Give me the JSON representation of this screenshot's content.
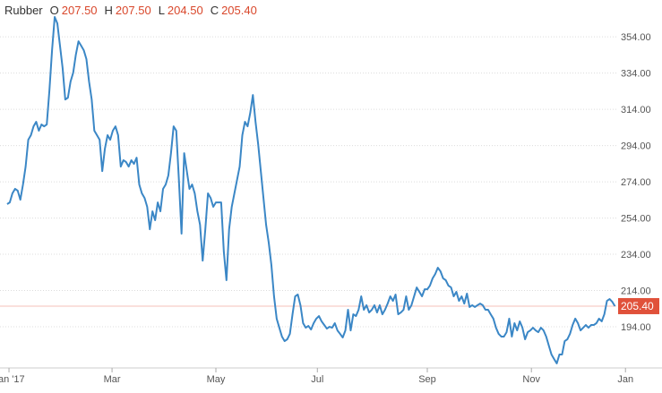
{
  "chart_data": {
    "type": "line",
    "title": "Rubber",
    "ohlc": [
      {
        "name": "O",
        "value": 207.5,
        "label": "207.50"
      },
      {
        "name": "H",
        "value": 207.5,
        "label": "207.50"
      },
      {
        "name": "L",
        "value": 204.5,
        "label": "204.50"
      },
      {
        "name": "C",
        "value": 205.4,
        "label": "205.40"
      }
    ],
    "color": "#3b87c6",
    "last_value": {
      "value": 205.4,
      "label": "205.40"
    },
    "last_color": "#e0513a",
    "values": [
      261.7,
      262.6,
      267.6,
      270.1,
      269.1,
      264.1,
      272.5,
      282.4,
      297.2,
      299.7,
      304.6,
      307.1,
      302.2,
      305.6,
      304.6,
      305.6,
      324.4,
      346.6,
      364.9,
      361.4,
      349.1,
      336.7,
      319.4,
      320.4,
      329.3,
      334.2,
      344.1,
      351.5,
      349.1,
      346.6,
      341.7,
      329.3,
      319.4,
      302.2,
      299.7,
      297.2,
      279.9,
      292.3,
      299.7,
      297.2,
      302.2,
      304.6,
      299.7,
      282.4,
      285.9,
      284.9,
      282.4,
      285.9,
      283.9,
      287.3,
      272.5,
      267.6,
      265.1,
      260.2,
      247.8,
      257.7,
      252.8,
      262.6,
      257.7,
      270.1,
      272.5,
      277.5,
      289.8,
      304.6,
      302.2,
      275,
      245.4,
      289.8,
      279.9,
      270.1,
      272.5,
      267.6,
      257.7,
      250.3,
      230.5,
      247.8,
      267.6,
      265.1,
      260.2,
      262.6,
      262.6,
      262.6,
      235.5,
      219.7,
      247.8,
      260.2,
      267.6,
      275,
      282.4,
      299.7,
      307.1,
      304.6,
      312,
      321.9,
      307.1,
      294.7,
      279.9,
      265.1,
      250.3,
      240.4,
      228.1,
      210.8,
      198.5,
      193.5,
      188.6,
      186.1,
      187.1,
      190.1,
      200.9,
      210.8,
      211.8,
      205.9,
      196,
      193.5,
      194.5,
      192.5,
      196,
      198.5,
      199.9,
      197,
      195,
      193,
      194,
      193.5,
      196,
      192,
      190.1,
      188.1,
      192,
      203.4,
      192,
      200.9,
      199.9,
      203.4,
      210.8,
      203.4,
      205.9,
      201.9,
      203.4,
      205.9,
      201.9,
      205.9,
      200.9,
      203.4,
      206.8,
      210.8,
      208.3,
      211.8,
      200.9,
      201.9,
      203.4,
      210.8,
      203.4,
      205.9,
      210.8,
      215.7,
      213.3,
      210.8,
      214.7,
      214.7,
      216.7,
      220.7,
      223.1,
      226.6,
      224.6,
      220.7,
      219.7,
      216.7,
      215.7,
      210.8,
      213.3,
      208.3,
      210.8,
      206.8,
      212.3,
      204.9,
      205.9,
      204.9,
      205.9,
      206.8,
      205.9,
      203.4,
      203.4,
      200.9,
      198.5,
      193.5,
      190.1,
      188.6,
      188.6,
      191,
      198.5,
      188.6,
      196,
      192,
      197,
      193.5,
      187.1,
      191,
      192,
      193.5,
      192,
      191,
      193.5,
      192,
      188.6,
      183.6,
      178.7,
      176.2,
      173.8,
      178.7,
      178.7,
      186.1,
      187.1,
      190.1,
      195,
      198.5,
      196,
      192,
      193.5,
      195,
      193.5,
      195,
      195,
      196,
      198.5,
      197,
      200.9,
      208.3,
      209.3,
      207.8,
      205.4
    ],
    "xlim": [
      -2.7,
      234.6
    ],
    "xticks": [
      {
        "value": 0.7,
        "label": "Jan '17"
      },
      {
        "value": 39.7,
        "label": "Mar"
      },
      {
        "value": 79,
        "label": "May"
      },
      {
        "value": 117.4,
        "label": "Jul"
      },
      {
        "value": 159,
        "label": "Sep"
      },
      {
        "value": 198.4,
        "label": "Nov"
      },
      {
        "value": 234,
        "label": "Jan"
      }
    ],
    "ylim": [
      171.3,
      374.3
    ],
    "yticks": [
      {
        "value": 194,
        "label": "194.00"
      },
      {
        "value": 214,
        "label": "214.00"
      },
      {
        "value": 234,
        "label": "234.00"
      },
      {
        "value": 254,
        "label": "254.00"
      },
      {
        "value": 274,
        "label": "274.00"
      },
      {
        "value": 294,
        "label": "294.00"
      },
      {
        "value": 314,
        "label": "314.00"
      },
      {
        "value": 334,
        "label": "334.00"
      },
      {
        "value": 354,
        "label": "354.00"
      }
    ],
    "grid": true
  }
}
